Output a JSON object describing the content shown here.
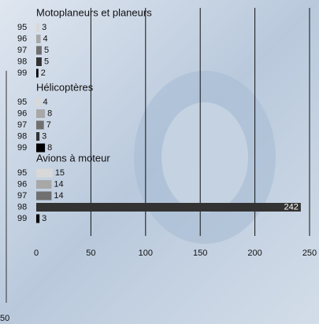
{
  "chart_data": {
    "type": "bar",
    "groups": [
      {
        "name": "Motoplaneurs et planeurs",
        "categories": [
          "95",
          "96",
          "97",
          "98",
          "99"
        ],
        "values": [
          3,
          4,
          5,
          5,
          2
        ]
      },
      {
        "name": "Hélicoptères",
        "categories": [
          "95",
          "96",
          "97",
          "98",
          "99"
        ],
        "values": [
          4,
          8,
          7,
          3,
          8
        ]
      },
      {
        "name": "Avions à moteur",
        "categories": [
          "95",
          "96",
          "97",
          "98",
          "99"
        ],
        "values": [
          15,
          14,
          14,
          242,
          3
        ]
      }
    ],
    "colors": [
      "#d8d8d8",
      "#a8a8a8",
      "#707070",
      "#333333",
      "#000000"
    ],
    "xlim": [
      0,
      250
    ],
    "xticks": [
      0,
      50,
      100,
      150,
      200,
      250
    ],
    "grid": true,
    "corner_label": "50"
  }
}
